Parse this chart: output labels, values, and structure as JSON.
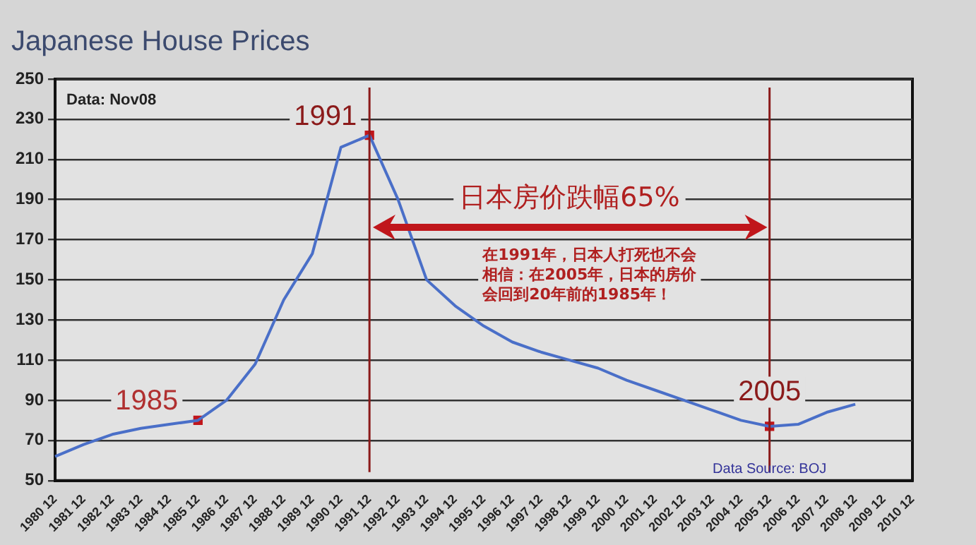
{
  "chart_data": {
    "type": "line",
    "title": "Japanese House Prices",
    "categories": [
      "1980 12",
      "1981 12",
      "1982 12",
      "1983 12",
      "1984 12",
      "1985 12",
      "1986 12",
      "1987 12",
      "1988 12",
      "1989 12",
      "1990 12",
      "1991 12",
      "1992 12",
      "1993 12",
      "1994 12",
      "1995 12",
      "1996 12",
      "1997 12",
      "1998 12",
      "1999 12",
      "2000 12",
      "2001 12",
      "2002 12",
      "2003 12",
      "2004 12",
      "2005 12",
      "2006 12",
      "2007 12",
      "2008 12",
      "2009 12",
      "2010 12"
    ],
    "series": [
      {
        "type": "line",
        "color": "#4a6fc8",
        "values": [
          62,
          68,
          73,
          76,
          78,
          80,
          90,
          108,
          140,
          163,
          216,
          222,
          190,
          150,
          137,
          127,
          119,
          114,
          110,
          106,
          100,
          95,
          90,
          85,
          80,
          77,
          78,
          84,
          88,
          null,
          null
        ]
      },
      {
        "type": "scatter",
        "color": "#c0161b",
        "marker": "square",
        "x": [
          "1985 12",
          "1991 12",
          "2005 12"
        ],
        "values": [
          80,
          222,
          77
        ]
      }
    ],
    "ylim": [
      50,
      250
    ],
    "yticks": [
      50,
      70,
      90,
      110,
      130,
      150,
      170,
      190,
      210,
      230,
      250
    ],
    "grid": "y",
    "legend": false,
    "line_style": "solid",
    "ref_lines": [
      {
        "axis": "x",
        "value": "1991 12",
        "label": "1991",
        "color": "#8b1a1a"
      },
      {
        "axis": "x",
        "value": "2005 12",
        "label": "2005",
        "color": "#8b1a1a"
      }
    ],
    "annotations": [
      {
        "text": "1985",
        "x": "1985 12",
        "y": 80
      },
      "Data: Nov08",
      "日本房价跌幅65%",
      "在1991年，日本人打死也不会相信：在2005年，日本的房价会回到20年前的1985年！",
      "Data Source: BOJ"
    ]
  }
}
